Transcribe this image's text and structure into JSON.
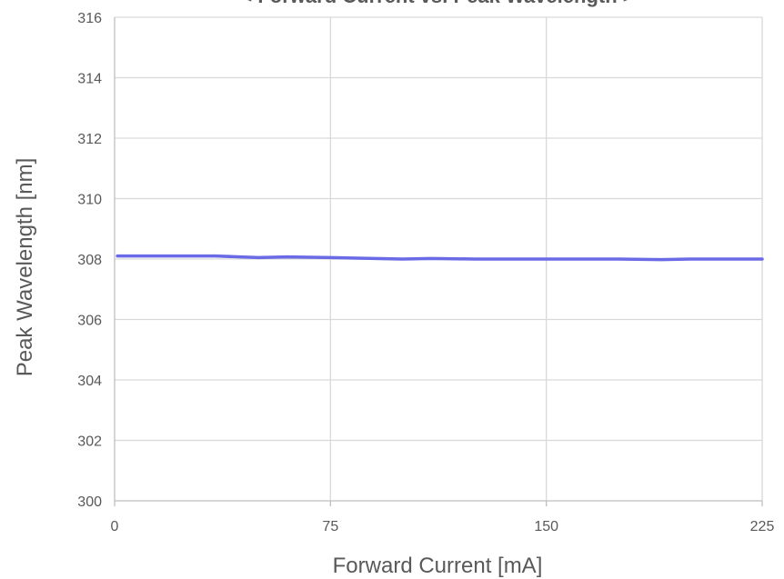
{
  "chart_data": {
    "type": "line",
    "title": "< Forward Current vs. Peak Wavelength >",
    "xlabel": "Forward Current [mA]",
    "ylabel": "Peak Wavelength [nm]",
    "xlim": [
      0,
      225
    ],
    "ylim": [
      300,
      316
    ],
    "xticks": [
      "0",
      "75",
      "150",
      "225"
    ],
    "yticks": [
      "300",
      "302",
      "304",
      "306",
      "308",
      "310",
      "312",
      "314",
      "316"
    ],
    "grid": true,
    "line_color": "#6a6ae6",
    "series": [
      {
        "x": [
          1,
          10,
          20,
          35,
          50,
          60,
          75,
          100,
          110,
          125,
          150,
          175,
          190,
          200,
          225
        ],
        "values": [
          308.1,
          308.1,
          308.1,
          308.1,
          308.05,
          308.07,
          308.05,
          308.0,
          308.02,
          308.0,
          308.0,
          308.0,
          307.98,
          308.0,
          308.0
        ]
      }
    ]
  }
}
